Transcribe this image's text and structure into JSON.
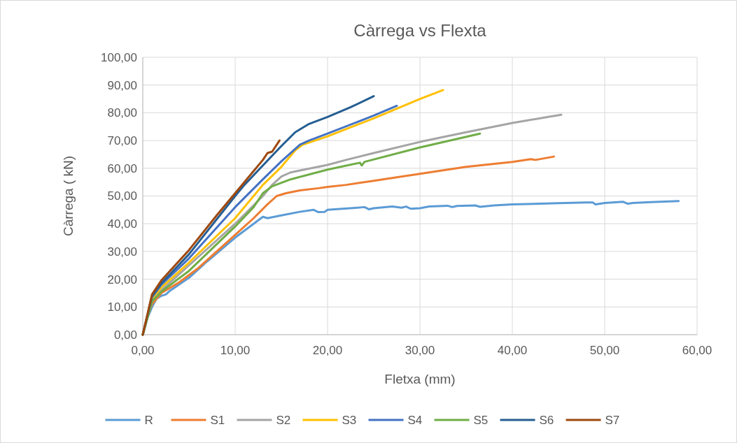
{
  "chart_data": {
    "type": "line",
    "title": "Càrrega vs Flexta",
    "xlabel": "Fletxa (mm)",
    "ylabel": "Càrrega ( kN)",
    "xlim": [
      0,
      60
    ],
    "ylim": [
      0,
      100
    ],
    "xticks": [
      {
        "value": 0,
        "label": "0,00"
      },
      {
        "value": 10,
        "label": "10,00"
      },
      {
        "value": 20,
        "label": "20,00"
      },
      {
        "value": 30,
        "label": "30,00"
      },
      {
        "value": 40,
        "label": "40,00"
      },
      {
        "value": 50,
        "label": "50,00"
      },
      {
        "value": 60,
        "label": "60,00"
      }
    ],
    "yticks": [
      {
        "value": 0,
        "label": "0,00"
      },
      {
        "value": 10,
        "label": "10,00"
      },
      {
        "value": 20,
        "label": "20,00"
      },
      {
        "value": 30,
        "label": "30,00"
      },
      {
        "value": 40,
        "label": "40,00"
      },
      {
        "value": 50,
        "label": "50,00"
      },
      {
        "value": 60,
        "label": "60,00"
      },
      {
        "value": 70,
        "label": "70,00"
      },
      {
        "value": 80,
        "label": "80,00"
      },
      {
        "value": 90,
        "label": "90,00"
      },
      {
        "value": 100,
        "label": "100,00"
      }
    ],
    "grid": true,
    "legend": "bottom",
    "line_style": "solid",
    "series": [
      {
        "name": "R",
        "color": "#5b9bd5",
        "x": [
          0,
          0.5,
          1,
          1.5,
          2,
          2.5,
          3,
          5,
          6.5,
          6.8,
          7,
          10,
          12,
          13,
          13.5,
          15,
          17,
          18.5,
          19,
          19.7,
          20,
          23,
          24,
          24.5,
          25,
          27,
          28,
          28.5,
          29,
          30,
          31,
          33,
          33.5,
          34,
          36,
          36.5,
          38,
          40,
          45,
          48,
          48.7,
          49,
          50,
          52,
          52.5,
          53,
          55,
          58
        ],
        "values": [
          0,
          6,
          10,
          13,
          14,
          14.5,
          16,
          20.5,
          25,
          26,
          26.5,
          35,
          40,
          42.5,
          42,
          43,
          44.3,
          45,
          44.2,
          44.3,
          45,
          45.7,
          46,
          45.2,
          45.6,
          46.2,
          45.8,
          46.2,
          45.4,
          45.6,
          46.2,
          46.5,
          46,
          46.4,
          46.6,
          46.1,
          46.6,
          47,
          47.4,
          47.7,
          47.7,
          47,
          47.5,
          47.9,
          47.2,
          47.5,
          47.8,
          48.2
        ]
      },
      {
        "name": "S1",
        "color": "#ed7d31",
        "x": [
          0,
          0.5,
          1,
          2,
          4,
          6,
          8,
          10,
          12,
          13.5,
          14.5,
          15.5,
          17,
          19,
          20,
          22,
          25,
          30,
          35,
          40,
          42,
          42.5,
          44.5
        ],
        "values": [
          0,
          7,
          11,
          15,
          19,
          24,
          30,
          36,
          42,
          47,
          50,
          51,
          52,
          52.8,
          53.3,
          54,
          55.5,
          58,
          60.5,
          62.3,
          63.3,
          63,
          64.2
        ]
      },
      {
        "name": "S2",
        "color": "#a5a5a5",
        "x": [
          0,
          1,
          2,
          5,
          10,
          13,
          14,
          15,
          16,
          17,
          20,
          22,
          25,
          30,
          35,
          40,
          44,
          45.3
        ],
        "values": [
          0,
          12,
          16,
          25,
          40,
          50,
          54,
          57,
          58.5,
          59.2,
          61.2,
          63,
          65.5,
          69.5,
          73,
          76.3,
          78.6,
          79.3
        ]
      },
      {
        "name": "S3",
        "color": "#ffc000",
        "x": [
          0,
          1,
          2,
          5,
          10,
          13,
          15,
          16.5,
          17.3,
          20,
          25,
          30,
          32.5
        ],
        "values": [
          0,
          13,
          17,
          26,
          42,
          54,
          60.5,
          66.5,
          68.5,
          71.5,
          78,
          85,
          88.2
        ]
      },
      {
        "name": "S4",
        "color": "#4472c4",
        "x": [
          0,
          1,
          2,
          5,
          10,
          13,
          15,
          17,
          18,
          20,
          25,
          27.5
        ],
        "values": [
          0,
          13.5,
          18,
          27.5,
          46,
          56,
          62.5,
          68.5,
          70,
          72.5,
          79,
          82.5
        ]
      },
      {
        "name": "S5",
        "color": "#70ad47",
        "x": [
          0,
          1,
          2,
          5,
          10,
          12,
          13,
          14,
          16,
          20,
          23.5,
          23.7,
          24,
          30,
          36.5
        ],
        "values": [
          0,
          12,
          15.5,
          23,
          39,
          46,
          51,
          53.5,
          56,
          59.5,
          62,
          61,
          62.3,
          67.5,
          72.5
        ]
      },
      {
        "name": "S6",
        "color": "#255e91",
        "x": [
          0,
          1,
          2,
          5,
          10,
          11,
          13,
          15,
          16.5,
          18,
          20,
          22.5,
          25
        ],
        "values": [
          0,
          14,
          18.5,
          29,
          50,
          54,
          61,
          68,
          73,
          76,
          78.5,
          82,
          86
        ]
      },
      {
        "name": "S7",
        "color": "#9e480e",
        "x": [
          0,
          1,
          2,
          5,
          8,
          10,
          12,
          13,
          13.5,
          14,
          14.8
        ],
        "values": [
          0,
          14.5,
          19.5,
          30.5,
          43,
          51,
          59,
          63,
          65.5,
          66,
          70
        ]
      }
    ]
  }
}
